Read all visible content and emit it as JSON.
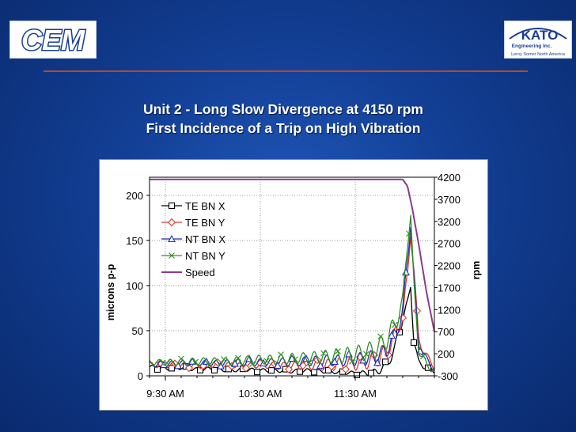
{
  "logos": {
    "left": {
      "text": "CEM"
    },
    "right": {
      "text": "KATO",
      "line2": "Engineering Inc.",
      "line3": "Leroy Somer North America"
    }
  },
  "colors": {
    "te_bn_x": "#000000",
    "te_bn_y": "#d93a2a",
    "nt_bn_x": "#1f2fb8",
    "nt_bn_y": "#2f8f22",
    "speed": "#8b3a8b",
    "accent_rule": "#b5472d"
  },
  "chart_data": {
    "type": "line",
    "title": "Unit 2 - Long Slow Divergence at 4150 rpm",
    "subtitle": "First Incidence of a Trip on High Vibration",
    "ylabel": "microns p-p",
    "y2label": "rpm",
    "ylim": [
      0,
      220
    ],
    "yticks": [
      0,
      50,
      100,
      150,
      200
    ],
    "y2lim": [
      -300,
      4200
    ],
    "y2ticks": [
      -300,
      200,
      700,
      1200,
      1700,
      2200,
      2700,
      3200,
      3700,
      4200
    ],
    "xlim": [
      "09:20",
      "12:20"
    ],
    "xticks": [
      {
        "value": "09:30",
        "label": "9:30 AM"
      },
      {
        "value": "10:30",
        "label": "10:30 AM"
      },
      {
        "value": "11:30",
        "label": "11:30 AM"
      }
    ],
    "grid": true,
    "legend": "upper-left",
    "series": [
      {
        "name": "TE BN X",
        "axis": "left",
        "marker": "square",
        "color_key": "te_bn_x",
        "x": [
          "09:20",
          "09:30",
          "09:40",
          "09:50",
          "10:00",
          "10:10",
          "10:20",
          "10:30",
          "10:40",
          "10:50",
          "11:00",
          "11:10",
          "11:20",
          "11:30",
          "11:40",
          "11:45",
          "11:50",
          "11:55",
          "12:00",
          "12:03",
          "12:05",
          "12:07",
          "12:10",
          "12:15",
          "12:20"
        ],
        "y": [
          10,
          8,
          9,
          7,
          8,
          6,
          7,
          6,
          6,
          5,
          6,
          5,
          4,
          3,
          3,
          6,
          12,
          30,
          65,
          78,
          100,
          40,
          15,
          8,
          5
        ],
        "amp": [
          2,
          2,
          2,
          2,
          2,
          2,
          2,
          2,
          2,
          2,
          2,
          2,
          2,
          2,
          3,
          4,
          5,
          6,
          6,
          6,
          4,
          4,
          3,
          2,
          2
        ]
      },
      {
        "name": "TE BN Y",
        "axis": "left",
        "marker": "diamond",
        "color_key": "te_bn_y",
        "x": [
          "09:20",
          "09:30",
          "09:40",
          "09:50",
          "10:00",
          "10:10",
          "10:20",
          "10:30",
          "10:40",
          "10:50",
          "11:00",
          "11:10",
          "11:20",
          "11:30",
          "11:40",
          "11:45",
          "11:50",
          "11:55",
          "12:00",
          "12:03",
          "12:05",
          "12:07",
          "12:10",
          "12:15",
          "12:20"
        ],
        "y": [
          12,
          12,
          12,
          11,
          12,
          12,
          11,
          12,
          11,
          11,
          12,
          12,
          13,
          14,
          17,
          20,
          28,
          45,
          65,
          110,
          160,
          120,
          40,
          22,
          10
        ],
        "amp": [
          3,
          3,
          3,
          3,
          3,
          3,
          3,
          3,
          4,
          4,
          5,
          6,
          7,
          8,
          9,
          9,
          9,
          8,
          8,
          8,
          6,
          6,
          5,
          4,
          3
        ]
      },
      {
        "name": "NT BN X",
        "axis": "left",
        "marker": "triangle",
        "color_key": "nt_bn_x",
        "x": [
          "09:20",
          "09:30",
          "09:40",
          "09:50",
          "10:00",
          "10:10",
          "10:20",
          "10:30",
          "10:40",
          "10:50",
          "11:00",
          "11:10",
          "11:20",
          "11:30",
          "11:40",
          "11:45",
          "11:50",
          "11:55",
          "12:00",
          "12:03",
          "12:05",
          "12:07",
          "12:10",
          "12:15",
          "12:20"
        ],
        "y": [
          13,
          13,
          14,
          14,
          14,
          14,
          15,
          15,
          15,
          16,
          16,
          17,
          17,
          18,
          20,
          22,
          30,
          45,
          70,
          130,
          170,
          110,
          35,
          18,
          8
        ],
        "amp": [
          3,
          3,
          3,
          3,
          3,
          4,
          4,
          4,
          4,
          5,
          5,
          6,
          6,
          7,
          8,
          8,
          9,
          9,
          8,
          8,
          6,
          6,
          5,
          4,
          3
        ]
      },
      {
        "name": "NT BN Y",
        "axis": "left",
        "marker": "x",
        "color_key": "nt_bn_y",
        "x": [
          "09:20",
          "09:30",
          "09:40",
          "09:50",
          "10:00",
          "10:10",
          "10:20",
          "10:30",
          "10:40",
          "10:50",
          "11:00",
          "11:10",
          "11:20",
          "11:30",
          "11:40",
          "11:45",
          "11:50",
          "11:55",
          "12:00",
          "12:03",
          "12:05",
          "12:07",
          "12:10",
          "12:15",
          "12:20"
        ],
        "y": [
          15,
          15,
          15,
          16,
          16,
          16,
          17,
          18,
          18,
          19,
          20,
          21,
          22,
          24,
          28,
          32,
          40,
          58,
          80,
          150,
          180,
          100,
          30,
          12,
          5
        ],
        "amp": [
          3,
          3,
          4,
          4,
          4,
          4,
          5,
          5,
          5,
          6,
          6,
          7,
          8,
          9,
          10,
          10,
          10,
          10,
          9,
          9,
          7,
          6,
          5,
          4,
          3
        ]
      },
      {
        "name": "Speed",
        "axis": "right",
        "marker": "none",
        "color_key": "speed",
        "x": [
          "09:20",
          "09:30",
          "10:00",
          "10:30",
          "11:00",
          "11:30",
          "11:55",
          "12:00",
          "12:03",
          "12:06",
          "12:10",
          "12:15",
          "12:20"
        ],
        "y": [
          4150,
          4150,
          4150,
          4150,
          4150,
          4150,
          4150,
          4150,
          4000,
          3500,
          2700,
          1600,
          700
        ],
        "amp": [
          0,
          0,
          0,
          0,
          0,
          0,
          0,
          0,
          0,
          0,
          0,
          0,
          0
        ]
      }
    ]
  }
}
